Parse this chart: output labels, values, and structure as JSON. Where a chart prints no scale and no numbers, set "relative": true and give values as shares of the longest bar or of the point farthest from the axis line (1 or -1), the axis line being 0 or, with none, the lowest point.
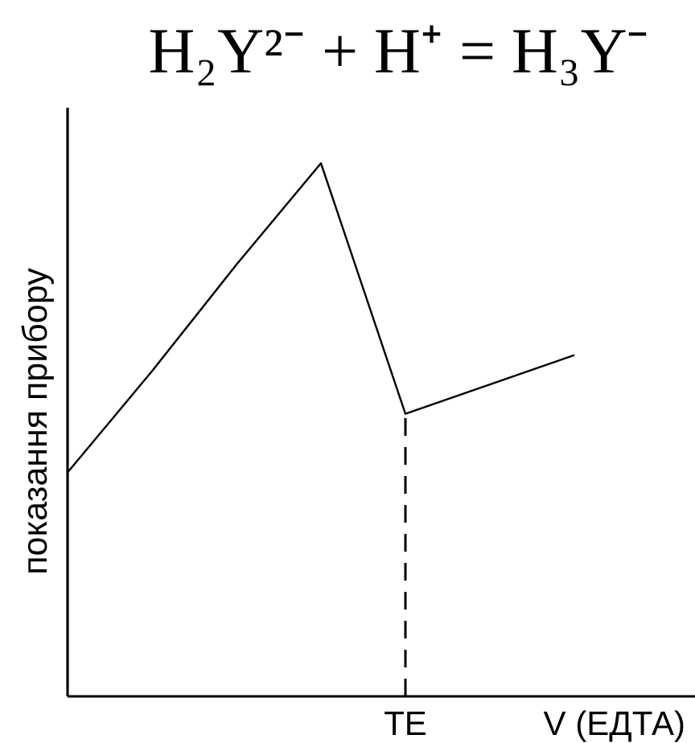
{
  "chart_data": {
    "type": "line",
    "title": "H₂Y²⁻ + H⁺ = H₃Y⁻",
    "ylabel": "показання прибору",
    "xlabel": "V (ЕДТА)",
    "relative": true,
    "categories": [
      null,
      null,
      null,
      null,
      null,
      null,
      null
    ],
    "values": [
      0.42,
      0.61,
      0.81,
      1,
      0.53,
      0.585,
      0.64
    ],
    "color": "#000000",
    "annotations": [
      {
        "text": "ТЕ",
        "y": 0.53
      }
    ]
  }
}
